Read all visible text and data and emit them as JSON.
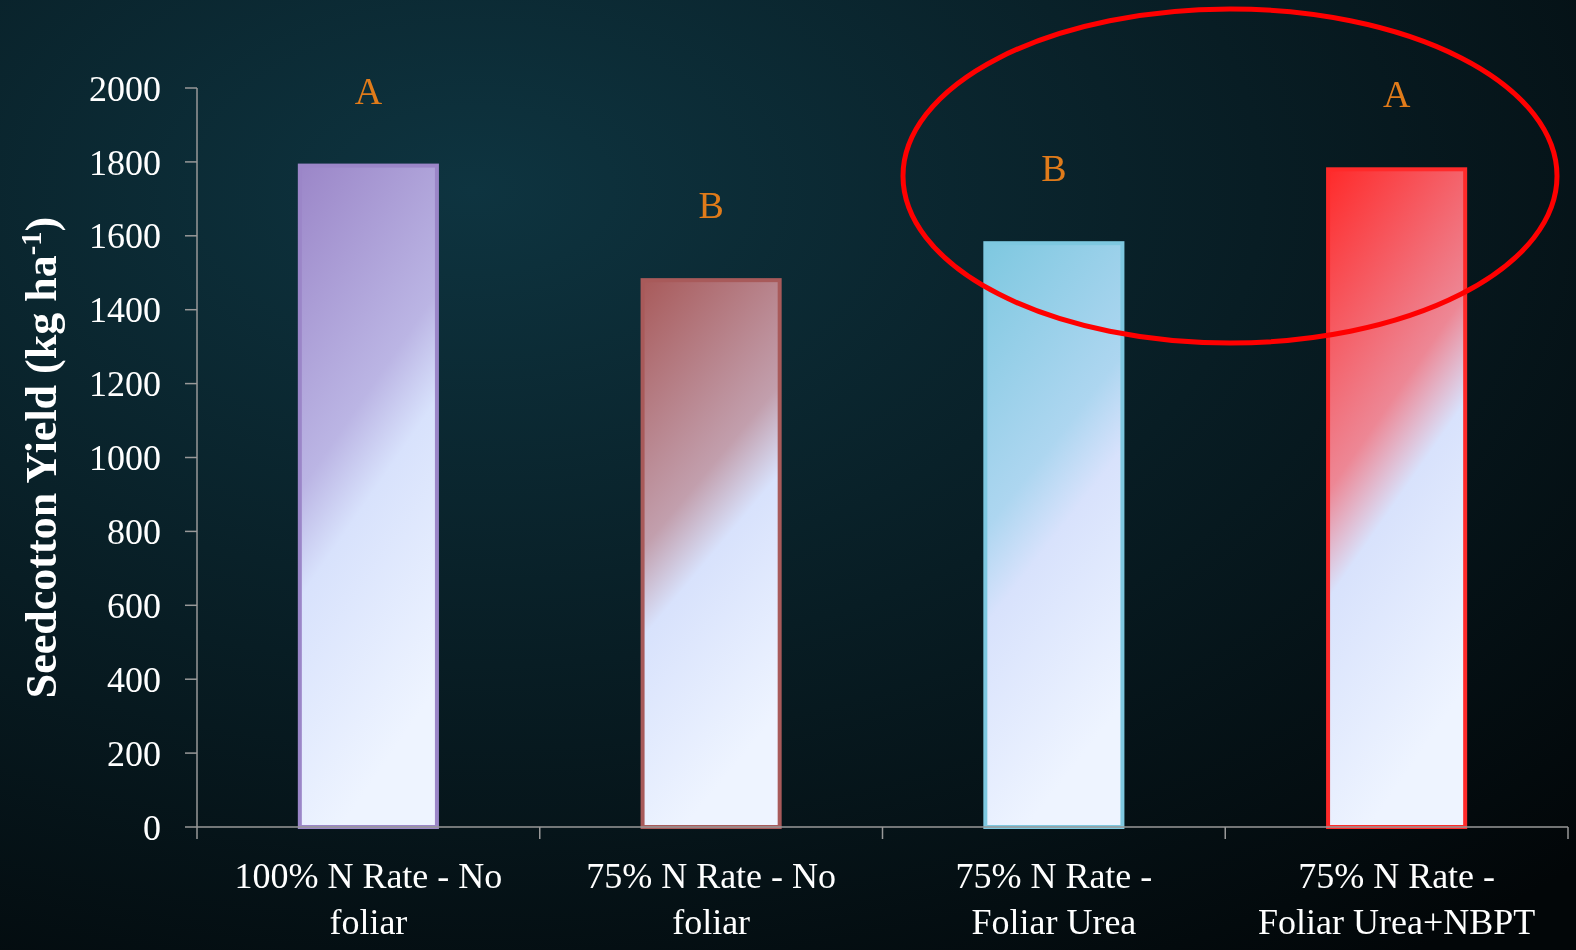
{
  "chart_data": {
    "type": "bar",
    "ylabel": "Seedcotton Yield (kg ha$^{-1}$)",
    "categories": [
      "100% N Rate - No foliar",
      "75% N Rate - No foliar",
      "75% N Rate - Foliar Urea",
      "75% N Rate - Foliar Urea+NBPT"
    ],
    "values": [
      1790,
      1480,
      1580,
      1780
    ],
    "colors": [
      "#9b86c8",
      "#a85a5a",
      "#7ec8e0",
      "#ff2a2a"
    ],
    "ylim": [
      0,
      2000
    ],
    "yticks": [
      0,
      200,
      400,
      600,
      800,
      1000,
      1200,
      1400,
      1600,
      1800,
      2000
    ],
    "grid": false,
    "annotations": [
      "A",
      "B",
      "B",
      "A"
    ]
  }
}
